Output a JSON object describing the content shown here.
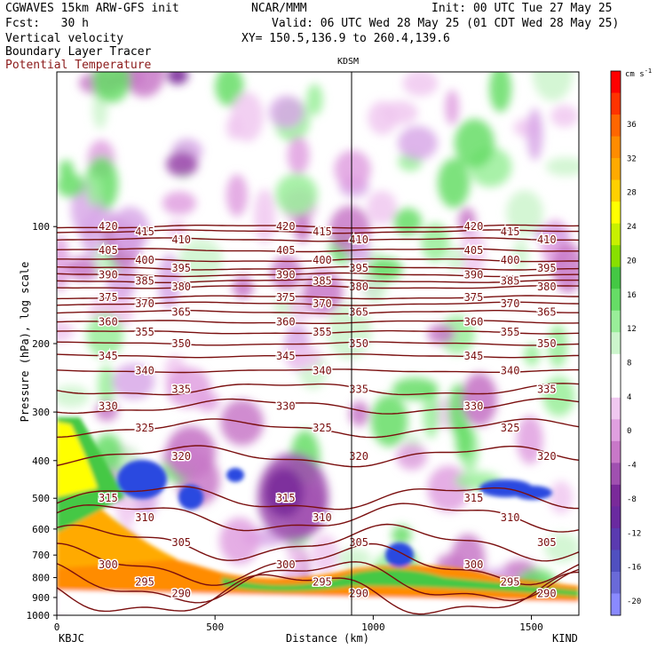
{
  "header": {
    "title_left": "CGWAVES 15km ARW-GFS init",
    "title_center": "NCAR/MMM",
    "init": "Init: 00 UTC Tue 27 May 25",
    "fcst": "Fcst:   30 h",
    "valid": "Valid: 06 UTC Wed 28 May 25 (01 CDT Wed 28 May 25)",
    "field1": "Vertical velocity",
    "xy": "XY= 150.5,136.9 to 260.4,139.6",
    "field2": "Boundary Layer Tracer",
    "field3": "Potential Temperature",
    "field3_color": "#8b1a1a"
  },
  "chart_data": {
    "type": "heatmap",
    "xlabel": "Distance (km)",
    "ylabel": "Pressure (hPa), log scale",
    "xlim": [
      0,
      1650
    ],
    "ylim": [
      1000,
      40
    ],
    "x_ticks": [
      "0",
      "500",
      "1000",
      "1500"
    ],
    "y_ticks": [
      "100",
      "200",
      "300",
      "400",
      "500",
      "600",
      "700",
      "800",
      "900",
      "1000"
    ],
    "left_station": "KBJC",
    "right_station": "KIND",
    "marker_station": "KDSM",
    "marker_x": 930,
    "colorbar": {
      "units": "cm s",
      "units_exp": "-1",
      "labels": [
        "36",
        "32",
        "28",
        "24",
        "20",
        "16",
        "12",
        "8",
        "4",
        "0",
        "-4",
        "-8",
        "-12",
        "-16",
        "-20"
      ],
      "colors": [
        "#ff0000",
        "#ff3300",
        "#ff6600",
        "#ff8c00",
        "#ffaa00",
        "#ffd000",
        "#ffff00",
        "#c8f000",
        "#88e000",
        "#44c844",
        "#66dd66",
        "#99ee99",
        "#ccf5cc",
        "#ffffff",
        "#ffffff",
        "#f0c8f0",
        "#e0a0e0",
        "#c878c8",
        "#a050b0",
        "#7a2a9a",
        "#6a2aa0",
        "#5a3ab0",
        "#5050c0",
        "#6a6ad8",
        "#8a8aff"
      ]
    },
    "theta_contours": [
      {
        "theta": "420",
        "p": 100
      },
      {
        "theta": "415",
        "p": 103
      },
      {
        "theta": "410",
        "p": 108
      },
      {
        "theta": "405",
        "p": 115
      },
      {
        "theta": "400",
        "p": 122
      },
      {
        "theta": "395",
        "p": 128
      },
      {
        "theta": "390",
        "p": 133
      },
      {
        "theta": "385",
        "p": 138
      },
      {
        "theta": "380",
        "p": 143
      },
      {
        "theta": "375",
        "p": 152
      },
      {
        "theta": "370",
        "p": 158
      },
      {
        "theta": "365",
        "p": 166
      },
      {
        "theta": "360",
        "p": 176
      },
      {
        "theta": "355",
        "p": 187
      },
      {
        "theta": "350",
        "p": 200
      },
      {
        "theta": "345",
        "p": 215
      },
      {
        "theta": "340",
        "p": 235
      },
      {
        "theta": "335",
        "p": 262
      },
      {
        "theta": "330",
        "p": 290
      },
      {
        "theta": "325",
        "p": 330
      },
      {
        "theta": "320",
        "p": 390
      },
      {
        "theta": "315",
        "p": 500
      },
      {
        "theta": "310",
        "p": 560
      },
      {
        "theta": "305",
        "p": 650
      },
      {
        "theta": "300",
        "p": 740
      },
      {
        "theta": "295",
        "p": 820
      },
      {
        "theta": "290",
        "p": 880
      }
    ]
  }
}
